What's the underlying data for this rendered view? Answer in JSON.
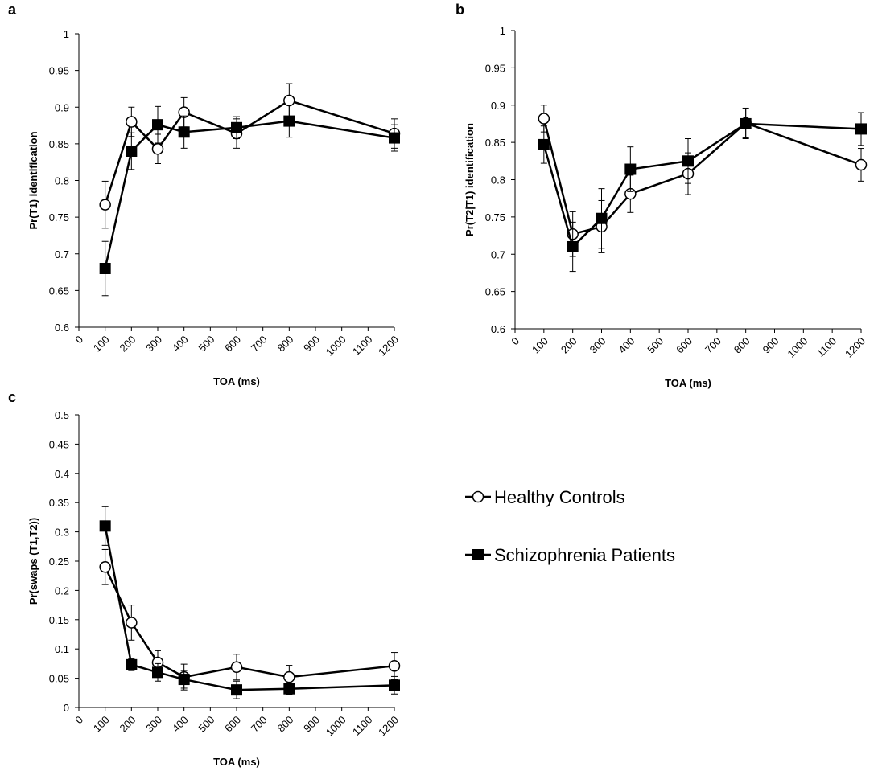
{
  "chart_data": [
    {
      "type": "line",
      "panel_label": "a",
      "x_label": "TOA (ms)",
      "y_label": "Pr(T1) identification",
      "x": [
        100,
        200,
        300,
        400,
        600,
        800,
        1200
      ],
      "xlim": [
        0,
        1200
      ],
      "xticks": [
        0,
        100,
        200,
        300,
        400,
        500,
        600,
        700,
        800,
        900,
        1000,
        1100,
        1200
      ],
      "ylim": [
        0.6,
        1
      ],
      "yticks": [
        0.6,
        0.65,
        0.7,
        0.75,
        0.8,
        0.85,
        0.9,
        0.95,
        1
      ],
      "series": [
        {
          "name": "Healthy Controls",
          "color": "#000000",
          "marker": "open-circle",
          "values": [
            0.767,
            0.88,
            0.843,
            0.893,
            0.864,
            0.909,
            0.864
          ],
          "errors": [
            0.032,
            0.02,
            0.02,
            0.02,
            0.02,
            0.023,
            0.02
          ]
        },
        {
          "name": "Schizophrenia Patients",
          "color": "#000000",
          "marker": "filled-square",
          "values": [
            0.68,
            0.84,
            0.876,
            0.866,
            0.872,
            0.881,
            0.858
          ],
          "errors": [
            0.037,
            0.025,
            0.025,
            0.022,
            0.015,
            0.022,
            0.018
          ]
        }
      ]
    },
    {
      "type": "line",
      "panel_label": "b",
      "x_label": "TOA (ms)",
      "y_label": "Pr(T2|T1) identification",
      "x": [
        100,
        200,
        300,
        400,
        600,
        800,
        1200
      ],
      "xlim": [
        0,
        1200
      ],
      "xticks": [
        0,
        100,
        200,
        300,
        400,
        500,
        600,
        700,
        800,
        900,
        1000,
        1100,
        1200
      ],
      "ylim": [
        0.6,
        1
      ],
      "yticks": [
        0.6,
        0.65,
        0.7,
        0.75,
        0.8,
        0.85,
        0.9,
        0.95,
        1
      ],
      "series": [
        {
          "name": "Healthy Controls",
          "color": "#000000",
          "marker": "open-circle",
          "values": [
            0.882,
            0.727,
            0.737,
            0.781,
            0.808,
            0.876,
            0.82
          ],
          "errors": [
            0.018,
            0.03,
            0.035,
            0.025,
            0.028,
            0.02,
            0.022
          ]
        },
        {
          "name": "Schizophrenia Patients",
          "color": "#000000",
          "marker": "filled-square",
          "values": [
            0.847,
            0.71,
            0.748,
            0.814,
            0.825,
            0.875,
            0.868
          ],
          "errors": [
            0.025,
            0.033,
            0.04,
            0.03,
            0.03,
            0.02,
            0.022
          ]
        }
      ]
    },
    {
      "type": "line",
      "panel_label": "c",
      "x_label": "TOA (ms)",
      "y_label": "Pr(swaps (T1,T2))",
      "x": [
        100,
        200,
        300,
        400,
        600,
        800,
        1200
      ],
      "xlim": [
        0,
        1200
      ],
      "xticks": [
        0,
        100,
        200,
        300,
        400,
        500,
        600,
        700,
        800,
        900,
        1000,
        1100,
        1200
      ],
      "ylim": [
        0,
        0.5
      ],
      "yticks": [
        0,
        0.05,
        0.1,
        0.15,
        0.2,
        0.25,
        0.3,
        0.35,
        0.4,
        0.45,
        0.5
      ],
      "series": [
        {
          "name": "Healthy Controls",
          "color": "#000000",
          "marker": "open-circle",
          "values": [
            0.24,
            0.145,
            0.077,
            0.052,
            0.069,
            0.052,
            0.071
          ],
          "errors": [
            0.03,
            0.03,
            0.02,
            0.022,
            0.022,
            0.02,
            0.023
          ]
        },
        {
          "name": "Schizophrenia Patients",
          "color": "#000000",
          "marker": "filled-square",
          "values": [
            0.31,
            0.073,
            0.06,
            0.048,
            0.03,
            0.032,
            0.038
          ],
          "errors": [
            0.033,
            0.01,
            0.015,
            0.015,
            0.015,
            0.01,
            0.015
          ]
        }
      ]
    }
  ]
}
